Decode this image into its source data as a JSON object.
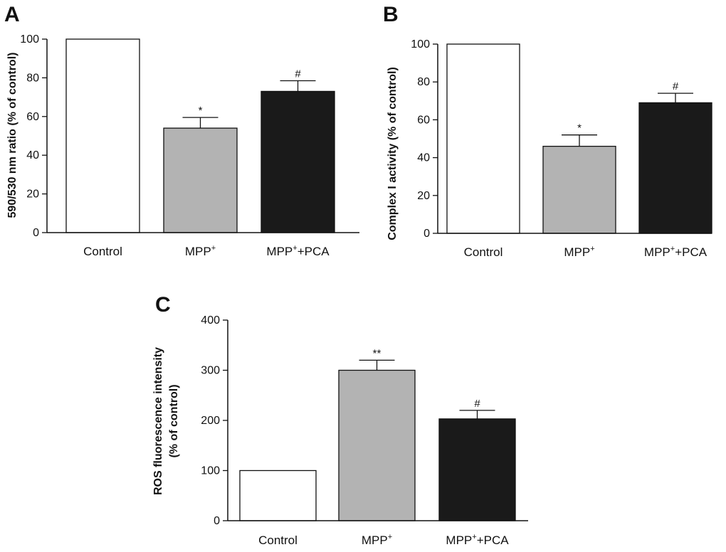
{
  "figure": {
    "background": "#ffffff"
  },
  "chart_data": [
    {
      "panel": "A",
      "type": "bar",
      "categories": [
        "Control",
        "MPP",
        "MPP+PCA"
      ],
      "category_superscripts": [
        "",
        "+",
        "+"
      ],
      "values": [
        100,
        54,
        73
      ],
      "errors": [
        0,
        5.5,
        5.5
      ],
      "significance": [
        "",
        "*",
        "#"
      ],
      "bar_colors": [
        "#ffffff",
        "#b3b3b3",
        "#1a1a1a"
      ],
      "ylabel_lines": [
        "590/530 nm ratio (% of control)"
      ],
      "ylim": [
        0,
        100
      ],
      "yticks": [
        0,
        20,
        40,
        60,
        80,
        100
      ],
      "xlabel": "",
      "title": ""
    },
    {
      "panel": "B",
      "type": "bar",
      "categories": [
        "Control",
        "MPP",
        "MPP+PCA"
      ],
      "category_superscripts": [
        "",
        "+",
        "+"
      ],
      "values": [
        100,
        46,
        69
      ],
      "errors": [
        0,
        6,
        5
      ],
      "significance": [
        "",
        "*",
        "#"
      ],
      "bar_colors": [
        "#ffffff",
        "#b3b3b3",
        "#1a1a1a"
      ],
      "ylabel_lines": [
        "Complex I activity (% of control)"
      ],
      "ylim": [
        0,
        100
      ],
      "yticks": [
        0,
        20,
        40,
        60,
        80,
        100
      ],
      "xlabel": "",
      "title": ""
    },
    {
      "panel": "C",
      "type": "bar",
      "categories": [
        "Control",
        "MPP",
        "MPP+PCA"
      ],
      "category_superscripts": [
        "",
        "+",
        "+"
      ],
      "values": [
        100,
        300,
        203
      ],
      "errors": [
        0,
        20,
        17
      ],
      "significance": [
        "",
        "**",
        "#"
      ],
      "bar_colors": [
        "#ffffff",
        "#b3b3b3",
        "#1a1a1a"
      ],
      "ylabel_lines": [
        "ROS fluorescence intensity",
        "(% of control)"
      ],
      "ylim": [
        0,
        400
      ],
      "yticks": [
        0,
        100,
        200,
        300,
        400
      ],
      "xlabel": "",
      "title": ""
    }
  ]
}
